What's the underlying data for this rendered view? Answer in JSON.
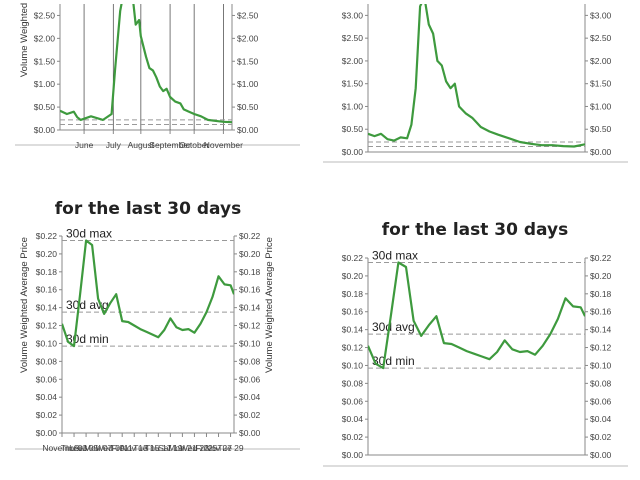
{
  "chart_data": [
    {
      "id": "top-left",
      "type": "line",
      "title": "",
      "ylabel": "Volume Weighted",
      "ylim": [
        0,
        2.75
      ],
      "y_ticks": [
        0,
        0.5,
        1.0,
        1.5,
        2.0,
        2.5
      ],
      "y_tick_labels": [
        "$0.00",
        "$0.50",
        "$1.00",
        "$1.50",
        "$2.00",
        "$2.50"
      ],
      "x_tick_labels": [
        "June",
        "July",
        "August",
        "September",
        "October",
        "November"
      ],
      "x_tick_positions": [
        0.14,
        0.31,
        0.47,
        0.64,
        0.78,
        0.95
      ],
      "x_span": [
        0,
        1
      ],
      "dashed_lines": [
        0.22,
        0.12
      ],
      "series": [
        {
          "color": "#3e9a3e",
          "x": [
            0,
            0.04,
            0.08,
            0.1,
            0.12,
            0.18,
            0.25,
            0.3,
            0.32,
            0.35,
            0.38,
            0.42,
            0.44,
            0.46,
            0.47,
            0.5,
            0.52,
            0.54,
            0.56,
            0.58,
            0.6,
            0.62,
            0.64,
            0.67,
            0.7,
            0.72,
            0.75,
            0.78,
            0.82,
            0.86,
            0.9,
            0.95,
            1.0
          ],
          "y": [
            0.42,
            0.35,
            0.4,
            0.28,
            0.22,
            0.3,
            0.22,
            0.35,
            1.3,
            2.6,
            3.2,
            3.0,
            2.3,
            2.4,
            2.05,
            1.6,
            1.35,
            1.3,
            1.15,
            0.95,
            0.85,
            0.9,
            0.72,
            0.62,
            0.58,
            0.45,
            0.4,
            0.35,
            0.3,
            0.22,
            0.2,
            0.18,
            0.17
          ]
        }
      ]
    },
    {
      "id": "top-right",
      "type": "line",
      "title": "",
      "ylabel": "",
      "ylim": [
        0,
        3.25
      ],
      "y_ticks": [
        0,
        0.5,
        1.0,
        1.5,
        2.0,
        2.5,
        3.0
      ],
      "y_tick_labels": [
        "$0.00",
        "$0.50",
        "$1.00",
        "$1.50",
        "$2.00",
        "$2.50",
        "$3.00"
      ],
      "x_tick_labels": [],
      "x_tick_positions": [],
      "x_span": [
        0,
        1
      ],
      "dashed_lines": [
        0.22,
        0.12
      ],
      "series": [
        {
          "color": "#3e9a3e",
          "x": [
            0,
            0.03,
            0.06,
            0.09,
            0.12,
            0.15,
            0.18,
            0.2,
            0.22,
            0.24,
            0.26,
            0.28,
            0.3,
            0.32,
            0.34,
            0.36,
            0.38,
            0.4,
            0.42,
            0.45,
            0.48,
            0.52,
            0.56,
            0.6,
            0.65,
            0.7,
            0.75,
            0.8,
            0.85,
            0.9,
            0.95,
            1.0
          ],
          "y": [
            0.4,
            0.35,
            0.4,
            0.28,
            0.25,
            0.32,
            0.3,
            0.6,
            1.4,
            3.2,
            3.4,
            2.8,
            2.6,
            2.0,
            1.9,
            1.55,
            1.4,
            1.5,
            1.0,
            0.85,
            0.75,
            0.55,
            0.45,
            0.38,
            0.3,
            0.22,
            0.18,
            0.15,
            0.15,
            0.13,
            0.12,
            0.17
          ]
        }
      ]
    },
    {
      "id": "bottom-left",
      "type": "line",
      "title": "for the last 30 days",
      "ylabel": "Volume Weighted Average Price",
      "ylim": [
        0,
        0.22
      ],
      "y_ticks": [
        0,
        0.02,
        0.04,
        0.06,
        0.08,
        0.1,
        0.12,
        0.14,
        0.16,
        0.18,
        0.2,
        0.22
      ],
      "y_tick_labels": [
        "$0.00",
        "$0.02",
        "$0.04",
        "$0.06",
        "$0.08",
        "$0.10",
        "$0.12",
        "$0.14",
        "$0.16",
        "$0.18",
        "$0.20",
        "$0.22"
      ],
      "x_tick_labels": [
        "November",
        "Thu 03",
        "Sat 05",
        "Mon 07",
        "Wed 09",
        "Fri 11",
        "Nov 13",
        "Tue 15",
        "Thu 17",
        "Sat 19",
        "Mon 21",
        "Wed 23",
        "Fri 25",
        "Nov 27",
        "Tue 29"
      ],
      "x_tick_positions": [
        0,
        0.07,
        0.14,
        0.21,
        0.28,
        0.35,
        0.42,
        0.49,
        0.56,
        0.63,
        0.7,
        0.77,
        0.84,
        0.91,
        0.98
      ],
      "x_span": [
        0,
        1
      ],
      "ref_labels": [
        "30d max",
        "30d avg",
        "30d min"
      ],
      "ref_values": [
        0.215,
        0.135,
        0.097
      ],
      "series": [
        {
          "color": "#3e9a3e",
          "x": [
            0,
            0.035,
            0.07,
            0.105,
            0.14,
            0.175,
            0.21,
            0.245,
            0.28,
            0.315,
            0.35,
            0.385,
            0.42,
            0.455,
            0.49,
            0.525,
            0.56,
            0.595,
            0.63,
            0.665,
            0.7,
            0.735,
            0.77,
            0.805,
            0.84,
            0.875,
            0.91,
            0.945,
            0.98,
            1.0
          ],
          "y": [
            0.122,
            0.102,
            0.097,
            0.155,
            0.215,
            0.21,
            0.15,
            0.133,
            0.145,
            0.155,
            0.125,
            0.124,
            0.12,
            0.116,
            0.113,
            0.11,
            0.107,
            0.115,
            0.128,
            0.118,
            0.115,
            0.116,
            0.112,
            0.122,
            0.135,
            0.152,
            0.175,
            0.166,
            0.165,
            0.155
          ]
        }
      ]
    },
    {
      "id": "bottom-right",
      "type": "line",
      "title": "for the last 30 days",
      "ylabel": "",
      "ylim": [
        0,
        0.22
      ],
      "y_ticks": [
        0,
        0.02,
        0.04,
        0.06,
        0.08,
        0.1,
        0.12,
        0.14,
        0.16,
        0.18,
        0.2,
        0.22
      ],
      "y_tick_labels": [
        "$0.00",
        "$0.02",
        "$0.04",
        "$0.06",
        "$0.08",
        "$0.10",
        "$0.12",
        "$0.14",
        "$0.16",
        "$0.18",
        "$0.20",
        "$0.22"
      ],
      "x_tick_labels": [],
      "x_tick_positions": [],
      "x_span": [
        0,
        1
      ],
      "ref_labels": [
        "30d max",
        "30d avg",
        "30d min"
      ],
      "ref_values": [
        0.215,
        0.135,
        0.097
      ],
      "series": [
        {
          "color": "#3e9a3e",
          "x": [
            0,
            0.035,
            0.07,
            0.105,
            0.14,
            0.175,
            0.21,
            0.245,
            0.28,
            0.315,
            0.35,
            0.385,
            0.42,
            0.455,
            0.49,
            0.525,
            0.56,
            0.595,
            0.63,
            0.665,
            0.7,
            0.735,
            0.77,
            0.805,
            0.84,
            0.875,
            0.91,
            0.945,
            0.98,
            1.0
          ],
          "y": [
            0.122,
            0.102,
            0.097,
            0.155,
            0.215,
            0.21,
            0.15,
            0.133,
            0.145,
            0.155,
            0.125,
            0.124,
            0.12,
            0.116,
            0.113,
            0.11,
            0.107,
            0.115,
            0.128,
            0.118,
            0.115,
            0.116,
            0.112,
            0.122,
            0.135,
            0.152,
            0.175,
            0.166,
            0.165,
            0.155
          ]
        }
      ]
    }
  ]
}
